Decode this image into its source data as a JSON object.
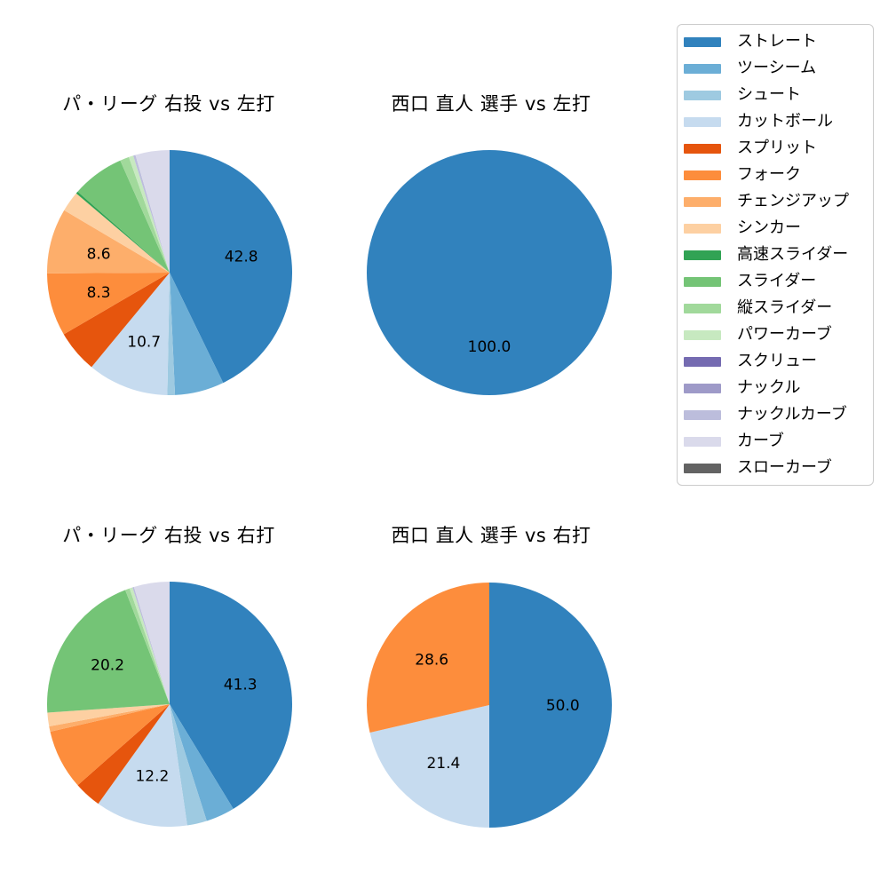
{
  "page": {
    "background": "#ffffff",
    "text_color": "#000000"
  },
  "chart_data": [
    {
      "type": "pie",
      "title": "パ・リーグ 右投 vs 左打",
      "start_angle": "top",
      "direction": "clockwise",
      "label_distance": 0.6,
      "slices": [
        {
          "name": "ストレート",
          "value": 42.8,
          "label": "42.8"
        },
        {
          "name": "ツーシーム",
          "value": 6.5
        },
        {
          "name": "シュート",
          "value": 1.0
        },
        {
          "name": "カットボール",
          "value": 10.7,
          "label": "10.7"
        },
        {
          "name": "スプリット",
          "value": 5.6
        },
        {
          "name": "フォーク",
          "value": 8.3,
          "label": "8.3"
        },
        {
          "name": "チェンジアップ",
          "value": 8.6,
          "label": "8.6"
        },
        {
          "name": "シンカー",
          "value": 2.7
        },
        {
          "name": "高速スライダー",
          "value": 0.3
        },
        {
          "name": "スライダー",
          "value": 6.9
        },
        {
          "name": "縦スライダー",
          "value": 1.2
        },
        {
          "name": "パワーカーブ",
          "value": 0.6
        },
        {
          "name": "ナックルカーブ",
          "value": 0.3
        },
        {
          "name": "カーブ",
          "value": 4.5
        }
      ]
    },
    {
      "type": "pie",
      "title": "西口 直人 選手 vs 左打",
      "start_angle": "top",
      "direction": "clockwise",
      "label_distance": 0.6,
      "slices": [
        {
          "name": "ストレート",
          "value": 100.0,
          "label": "100.0"
        }
      ]
    },
    {
      "type": "pie",
      "title": "パ・リーグ 右投 vs 右打",
      "start_angle": "top",
      "direction": "clockwise",
      "label_distance": 0.6,
      "slices": [
        {
          "name": "ストレート",
          "value": 41.3,
          "label": "41.3"
        },
        {
          "name": "ツーシーム",
          "value": 3.8
        },
        {
          "name": "シュート",
          "value": 2.6
        },
        {
          "name": "カットボール",
          "value": 12.2,
          "label": "12.2"
        },
        {
          "name": "スプリット",
          "value": 3.6
        },
        {
          "name": "フォーク",
          "value": 7.9
        },
        {
          "name": "チェンジアップ",
          "value": 0.7
        },
        {
          "name": "シンカー",
          "value": 1.8
        },
        {
          "name": "スライダー",
          "value": 20.2,
          "label": "20.2"
        },
        {
          "name": "縦スライダー",
          "value": 0.6
        },
        {
          "name": "パワーカーブ",
          "value": 0.4
        },
        {
          "name": "ナックルカーブ",
          "value": 0.2
        },
        {
          "name": "カーブ",
          "value": 4.7
        }
      ]
    },
    {
      "type": "pie",
      "title": "西口 直人 選手 vs 右打",
      "start_angle": "top",
      "direction": "clockwise",
      "label_distance": 0.6,
      "slices": [
        {
          "name": "ストレート",
          "value": 50.0,
          "label": "50.0"
        },
        {
          "name": "カットボール",
          "value": 21.4,
          "label": "21.4"
        },
        {
          "name": "フォーク",
          "value": 28.6,
          "label": "28.6"
        }
      ]
    }
  ],
  "legend": {
    "position": "top-right",
    "items": [
      {
        "label": "ストレート",
        "color": "#3182bd"
      },
      {
        "label": "ツーシーム",
        "color": "#6baed6"
      },
      {
        "label": "シュート",
        "color": "#9ecae1"
      },
      {
        "label": "カットボール",
        "color": "#c6dbef"
      },
      {
        "label": "スプリット",
        "color": "#e6550d"
      },
      {
        "label": "フォーク",
        "color": "#fd8d3c"
      },
      {
        "label": "チェンジアップ",
        "color": "#fdae6b"
      },
      {
        "label": "シンカー",
        "color": "#fdd0a2"
      },
      {
        "label": "高速スライダー",
        "color": "#31a354"
      },
      {
        "label": "スライダー",
        "color": "#74c476"
      },
      {
        "label": "縦スライダー",
        "color": "#a1d99b"
      },
      {
        "label": "パワーカーブ",
        "color": "#c7e9c0"
      },
      {
        "label": "スクリュー",
        "color": "#756bb1"
      },
      {
        "label": "ナックル",
        "color": "#9e9ac8"
      },
      {
        "label": "ナックルカーブ",
        "color": "#bcbddc"
      },
      {
        "label": "カーブ",
        "color": "#dadaeb"
      },
      {
        "label": "スローカーブ",
        "color": "#636363"
      }
    ]
  }
}
